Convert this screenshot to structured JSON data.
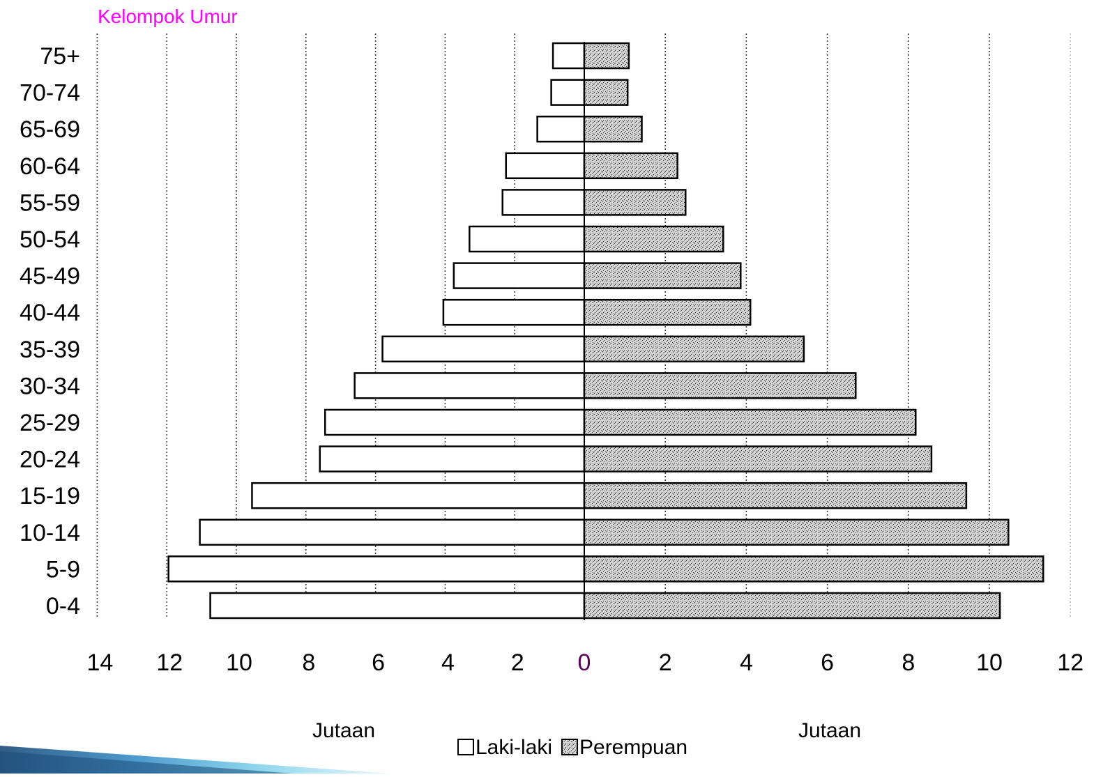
{
  "chart_data": {
    "type": "bar",
    "orientation": "horizontal",
    "title": "Kelompok Umur",
    "title_color": "#ff00ff",
    "categories": [
      "75+",
      "70-74",
      "65-69",
      "60-64",
      "55-59",
      "50-54",
      "45-49",
      "40-44",
      "35-39",
      "30-34",
      "25-29",
      "20-24",
      "15-19",
      "10-14",
      "5-9",
      "0-4"
    ],
    "series": [
      {
        "name": "Laki-laki",
        "side": "left",
        "fill": "#ffffff",
        "values": [
          0.9,
          0.95,
          1.35,
          2.25,
          2.35,
          3.3,
          3.75,
          4.05,
          5.8,
          6.6,
          7.45,
          7.6,
          9.55,
          11.05,
          11.95,
          10.75
        ]
      },
      {
        "name": "Perempuan",
        "side": "right",
        "fill": "#bdbdbd",
        "values": [
          1.1,
          1.07,
          1.42,
          2.3,
          2.5,
          3.43,
          3.86,
          4.1,
          5.42,
          6.7,
          8.18,
          8.57,
          9.43,
          10.47,
          11.33,
          10.26
        ]
      }
    ],
    "left_axis": {
      "label": "Jutaan",
      "range": [
        0,
        14
      ],
      "ticks": [
        "14",
        "12",
        "10",
        "8",
        "6",
        "4",
        "2"
      ]
    },
    "right_axis": {
      "label": "Jutaan",
      "range": [
        0,
        12
      ],
      "ticks": [
        "0",
        "2",
        "4",
        "6",
        "8",
        "10",
        "12"
      ]
    },
    "center_tick_color": "#5a005a",
    "grid": "vertical-dotted",
    "legend": {
      "placement": "bottom-center",
      "items": [
        "Laki-laki",
        "Perempuan"
      ]
    }
  },
  "decoration": {
    "accent_colors": [
      "#1a4a78",
      "#3a8fc8",
      "#7fd0ea",
      "#e6f6fb"
    ]
  }
}
